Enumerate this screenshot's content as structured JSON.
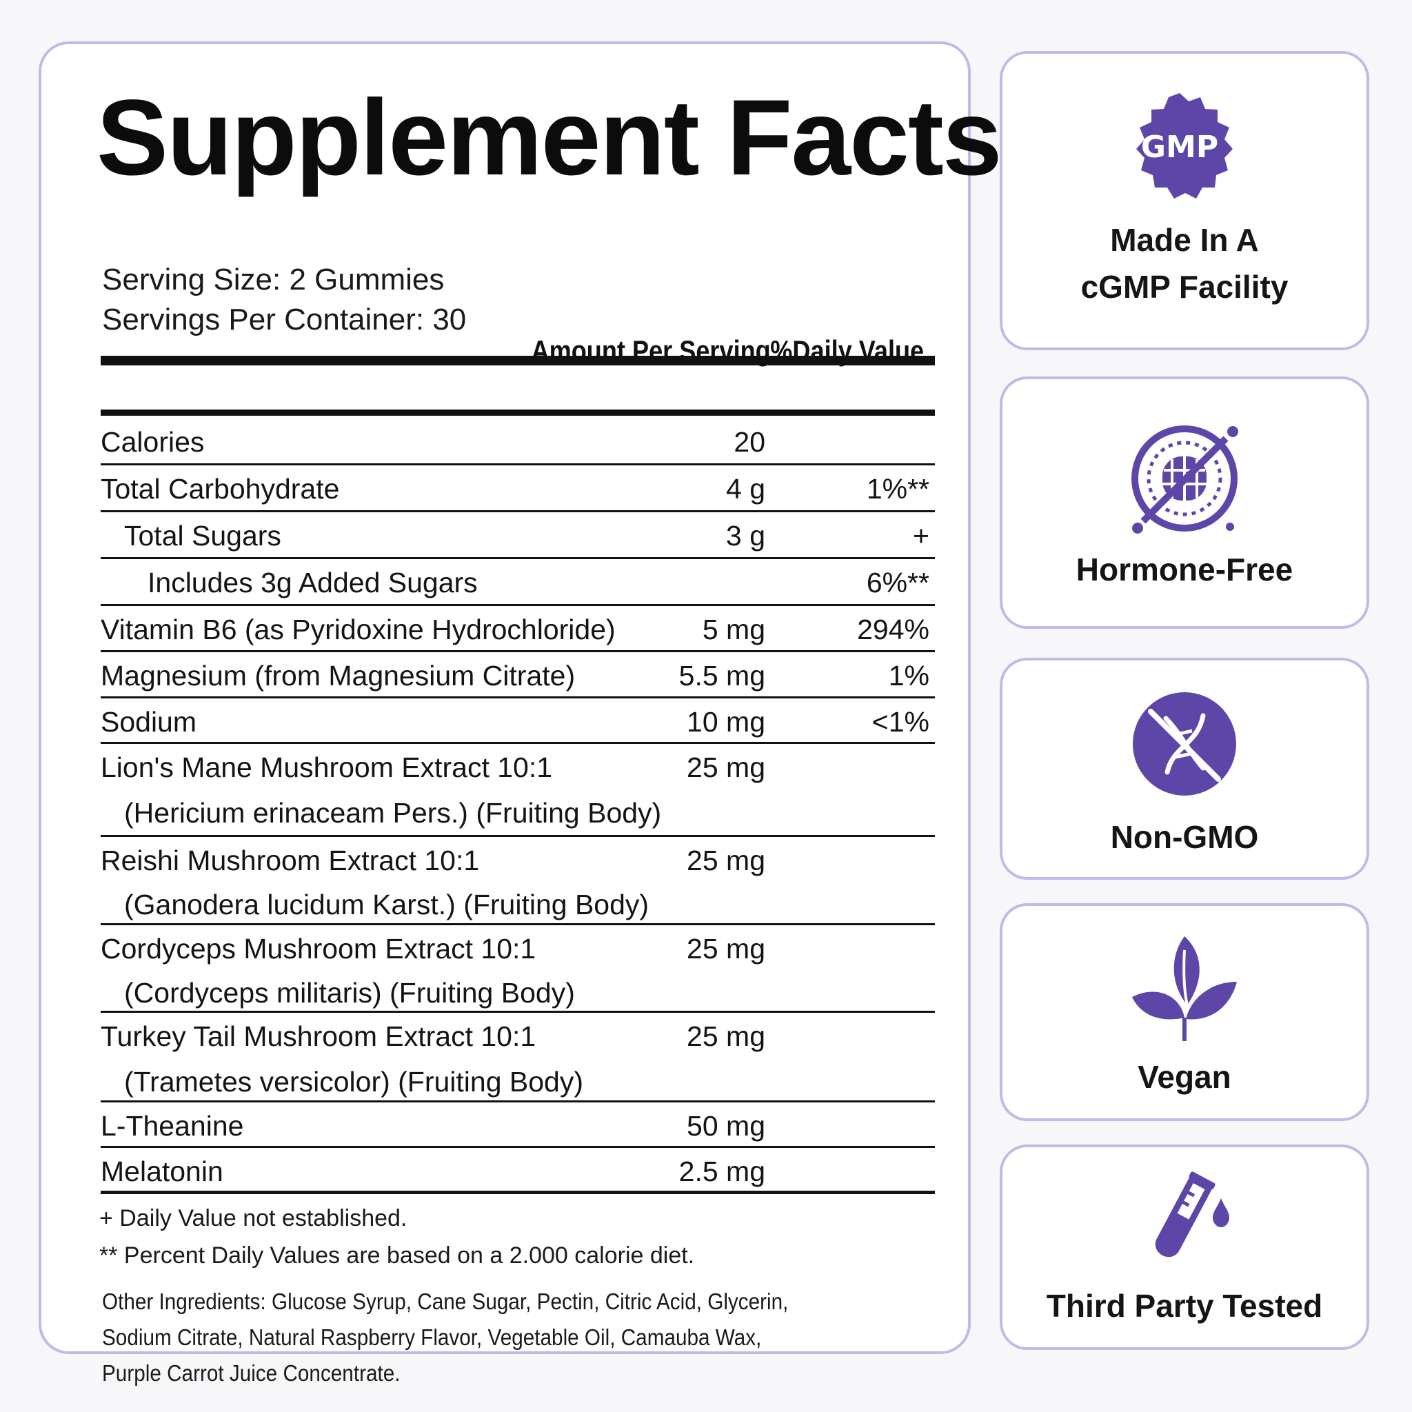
{
  "facts": {
    "title": "Supplement Facts",
    "serving_size": "Serving Size: 2 Gummies",
    "servings_per_container": "Servings Per Container: 30",
    "col_amount": "Amount Per Serving",
    "col_dv": "%Daily Value",
    "rows": [
      {
        "name": "Calories",
        "amount": "20",
        "dv": ""
      },
      {
        "name": "Total Carbohydrate",
        "amount": "4 g",
        "dv": "1%**"
      },
      {
        "name": "Total Sugars",
        "amount": "3 g",
        "dv": "+"
      },
      {
        "name": "Includes 3g Added Sugars",
        "amount": "",
        "dv": "6%**"
      },
      {
        "name": "Vitamin B6 (as Pyridoxine Hydrochloride)",
        "amount": "5 mg",
        "dv": "294%"
      },
      {
        "name": "Magnesium (from Magnesium Citrate)",
        "amount": "5.5 mg",
        "dv": "1%"
      },
      {
        "name": "Sodium",
        "amount": "10 mg",
        "dv": "<1%"
      },
      {
        "name": "Lion's Mane Mushroom Extract 10:1",
        "detail": "(Hericium erinaceam Pers.) (Fruiting Body)",
        "amount": "25 mg",
        "dv": ""
      },
      {
        "name": "Reishi Mushroom Extract 10:1",
        "detail": "(Ganodera lucidum Karst.) (Fruiting Body)",
        "amount": "25 mg",
        "dv": ""
      },
      {
        "name": "Cordyceps Mushroom Extract 10:1",
        "detail": "(Cordyceps militaris) (Fruiting Body)",
        "amount": "25 mg",
        "dv": ""
      },
      {
        "name": "Turkey Tail Mushroom Extract 10:1",
        "detail": "(Trametes versicolor) (Fruiting Body)",
        "amount": "25 mg",
        "dv": ""
      },
      {
        "name": "L-Theanine",
        "amount": "50 mg",
        "dv": ""
      },
      {
        "name": "Melatonin",
        "amount": "2.5 mg",
        "dv": ""
      }
    ],
    "footnote_1": "+ Daily Value not established.",
    "footnote_2": "** Percent Daily Values are based on a 2.000 calorie diet.",
    "other_ingredients": "Other Ingredients: Glucose Syrup, Cane Sugar, Pectin, Citric Acid, Glycerin, Sodium Citrate, Natural Raspberry Flavor, Vegetable Oil, Camauba Wax, Purple Carrot Juice Concentrate."
  },
  "badges": [
    {
      "icon": "gmp-seal-icon",
      "seal_text": "GMP",
      "label_line1": "Made In A",
      "label_line2": "cGMP Facility"
    },
    {
      "icon": "hormone-free-icon",
      "label": "Hormone-Free"
    },
    {
      "icon": "non-gmo-icon",
      "label": "Non-GMO"
    },
    {
      "icon": "vegan-leaves-icon",
      "label": "Vegan"
    },
    {
      "icon": "test-tube-icon",
      "label": "Third Party Tested"
    }
  ],
  "colors": {
    "accent": "#5e46a8",
    "panel_border": "#c4b8ea"
  }
}
